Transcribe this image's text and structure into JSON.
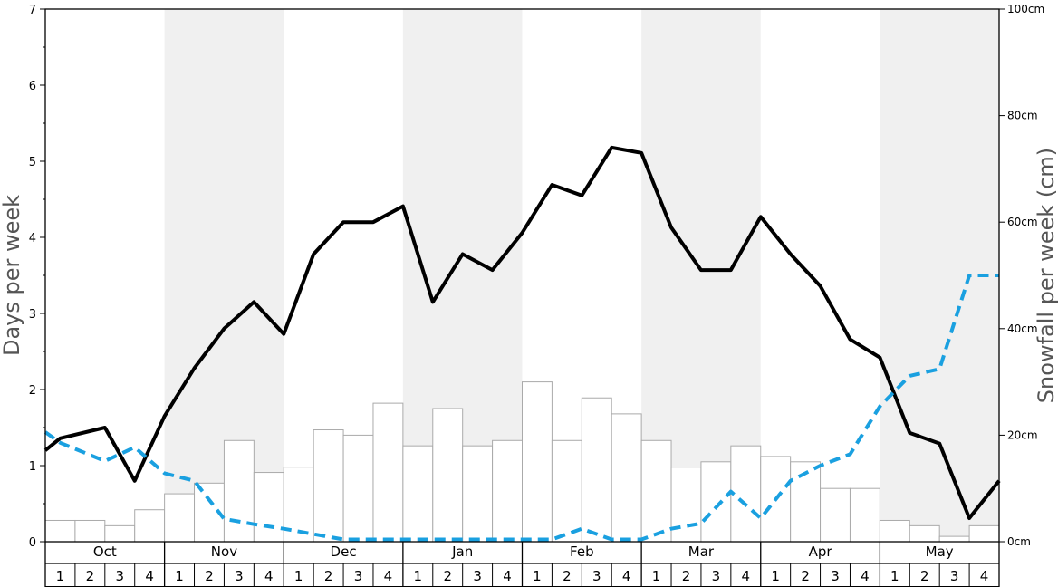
{
  "chart_data": {
    "type": "bar+line",
    "ylabel_left": "Days per week",
    "ylabel_right": "Snowfall per week (cm)",
    "ylim_left": [
      0,
      7
    ],
    "ylim_right": [
      0,
      100
    ],
    "left_ticks": [
      "0",
      "1",
      "2",
      "3",
      "4",
      "5",
      "6",
      "7"
    ],
    "right_ticks": [
      "0cm",
      "20cm",
      "40cm",
      "60cm",
      "80cm",
      "100cm"
    ],
    "right_tick_values": [
      0,
      20,
      40,
      60,
      80,
      100
    ],
    "months": [
      "Oct",
      "Nov",
      "Dec",
      "Jan",
      "Feb",
      "Mar",
      "Apr",
      "May"
    ],
    "weeks": [
      "1",
      "2",
      "3",
      "4"
    ],
    "shaded_months": [
      "Nov",
      "Jan",
      "Mar",
      "May"
    ],
    "colors": {
      "shade": "#f0f0f0",
      "bar_fill": "#ffffff",
      "bar_stroke": "#aaaaaa",
      "solid_line": "#000000",
      "dashed_line": "#1aa0e0"
    },
    "series": [
      {
        "kind": "bar",
        "axis": "right",
        "values": [
          4,
          4,
          3,
          6,
          9,
          11,
          19,
          13,
          14,
          21,
          20,
          26,
          18,
          25,
          18,
          19,
          30,
          19,
          27,
          24,
          19,
          14,
          15,
          18,
          16,
          15,
          10,
          10,
          4,
          3,
          1,
          3
        ]
      },
      {
        "kind": "line",
        "style": "solid",
        "axis": "left",
        "points": [
          [
            0,
            1.2
          ],
          [
            0.5,
            1.36
          ],
          [
            2,
            1.5
          ],
          [
            3,
            0.8
          ],
          [
            4,
            1.65
          ],
          [
            5,
            2.28
          ],
          [
            6,
            2.8
          ],
          [
            7,
            3.15
          ],
          [
            8,
            2.73
          ],
          [
            9,
            3.78
          ],
          [
            10,
            4.2
          ],
          [
            11,
            4.2
          ],
          [
            12,
            4.41
          ],
          [
            13,
            3.15
          ],
          [
            14,
            3.78
          ],
          [
            15,
            3.57
          ],
          [
            16,
            4.06
          ],
          [
            17,
            4.69
          ],
          [
            18,
            4.55
          ],
          [
            19,
            5.18
          ],
          [
            20,
            5.11
          ],
          [
            21,
            4.13
          ],
          [
            22,
            3.57
          ],
          [
            23,
            3.57
          ],
          [
            24,
            4.27
          ],
          [
            25,
            3.78
          ],
          [
            26,
            3.36
          ],
          [
            27,
            2.66
          ],
          [
            28,
            2.42
          ],
          [
            29,
            1.43
          ],
          [
            30,
            1.29
          ],
          [
            31,
            0.31
          ],
          [
            32,
            0.8
          ]
        ]
      },
      {
        "kind": "line",
        "style": "dashed",
        "axis": "left",
        "points": [
          [
            0,
            1.44
          ],
          [
            0.5,
            1.3
          ],
          [
            2,
            1.06
          ],
          [
            3,
            1.24
          ],
          [
            4,
            0.9
          ],
          [
            5,
            0.8
          ],
          [
            6,
            0.3
          ],
          [
            7,
            0.23
          ],
          [
            8,
            0.17
          ],
          [
            9,
            0.1
          ],
          [
            10,
            0.03
          ],
          [
            11,
            0.03
          ],
          [
            12,
            0.03
          ],
          [
            13,
            0.03
          ],
          [
            14,
            0.03
          ],
          [
            15,
            0.03
          ],
          [
            16,
            0.03
          ],
          [
            17,
            0.03
          ],
          [
            18,
            0.17
          ],
          [
            19,
            0.03
          ],
          [
            20,
            0.03
          ],
          [
            21,
            0.17
          ],
          [
            22,
            0.24
          ],
          [
            23,
            0.66
          ],
          [
            24,
            0.31
          ],
          [
            25,
            0.8
          ],
          [
            26,
            1.0
          ],
          [
            27,
            1.15
          ],
          [
            28,
            1.78
          ],
          [
            29,
            2.18
          ],
          [
            30,
            2.27
          ],
          [
            31,
            3.5
          ],
          [
            32,
            3.5
          ]
        ]
      }
    ]
  }
}
